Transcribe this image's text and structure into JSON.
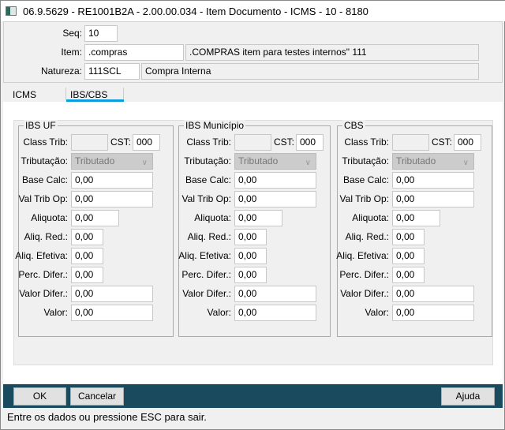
{
  "window": {
    "title": "06.9.5629 - RE1001B2A - 2.00.00.034 - Item Documento - ICMS - 10 - 8180",
    "icon": "app-icon"
  },
  "header": {
    "seq_label": "Seq:",
    "seq_value": "10",
    "item_label": "Item:",
    "item_code": ".compras",
    "item_desc": ".COMPRAS item para testes internos\" 111",
    "natureza_label": "Natureza:",
    "natureza_code": "111SCL",
    "natureza_desc": "Compra Interna"
  },
  "tabs": [
    {
      "label": "ICMS",
      "active": false
    },
    {
      "label": "IBS/CBS",
      "active": true
    }
  ],
  "labels": {
    "class_trib": "Class Trib:",
    "cst": "CST:",
    "tributacao": "Tributação:",
    "base_calc": "Base Calc:",
    "val_trib_op": "Val Trib Op:",
    "aliquota": "Aliquota:",
    "aliq_red": "Aliq. Red.:",
    "aliq_efetiva": "Aliq. Efetiva:",
    "perc_difer": "Perc. Difer.:",
    "valor_difer": "Valor Difer.:",
    "valor": "Valor:"
  },
  "groups": [
    {
      "title": "IBS UF",
      "class_trib": "",
      "cst": "000",
      "tributacao": "Tributado",
      "base_calc": "0,00",
      "val_trib_op": "0,00",
      "aliquota": "0,00",
      "aliq_red": "0,00",
      "aliq_efetiva": "0,00",
      "perc_difer": "0,00",
      "valor_difer": "0,00",
      "valor": "0,00"
    },
    {
      "title": "IBS Município",
      "class_trib": "",
      "cst": "000",
      "tributacao": "Tributado",
      "base_calc": "0,00",
      "val_trib_op": "0,00",
      "aliquota": "0,00",
      "aliq_red": "0,00",
      "aliq_efetiva": "0,00",
      "perc_difer": "0,00",
      "valor_difer": "0,00",
      "valor": "0,00"
    },
    {
      "title": "CBS",
      "class_trib": "",
      "cst": "000",
      "tributacao": "Tributado",
      "base_calc": "0,00",
      "val_trib_op": "0,00",
      "aliquota": "0,00",
      "aliq_red": "0,00",
      "aliq_efetiva": "0,00",
      "perc_difer": "0,00",
      "valor_difer": "0,00",
      "valor": "0,00"
    }
  ],
  "buttons": {
    "ok": "OK",
    "cancel": "Cancelar",
    "help": "Ajuda"
  },
  "status": "Entre os dados ou pressione ESC para sair.",
  "colors": {
    "bottom_bar": "#1a4a5e",
    "tab_accent": "#0a9ee0"
  }
}
